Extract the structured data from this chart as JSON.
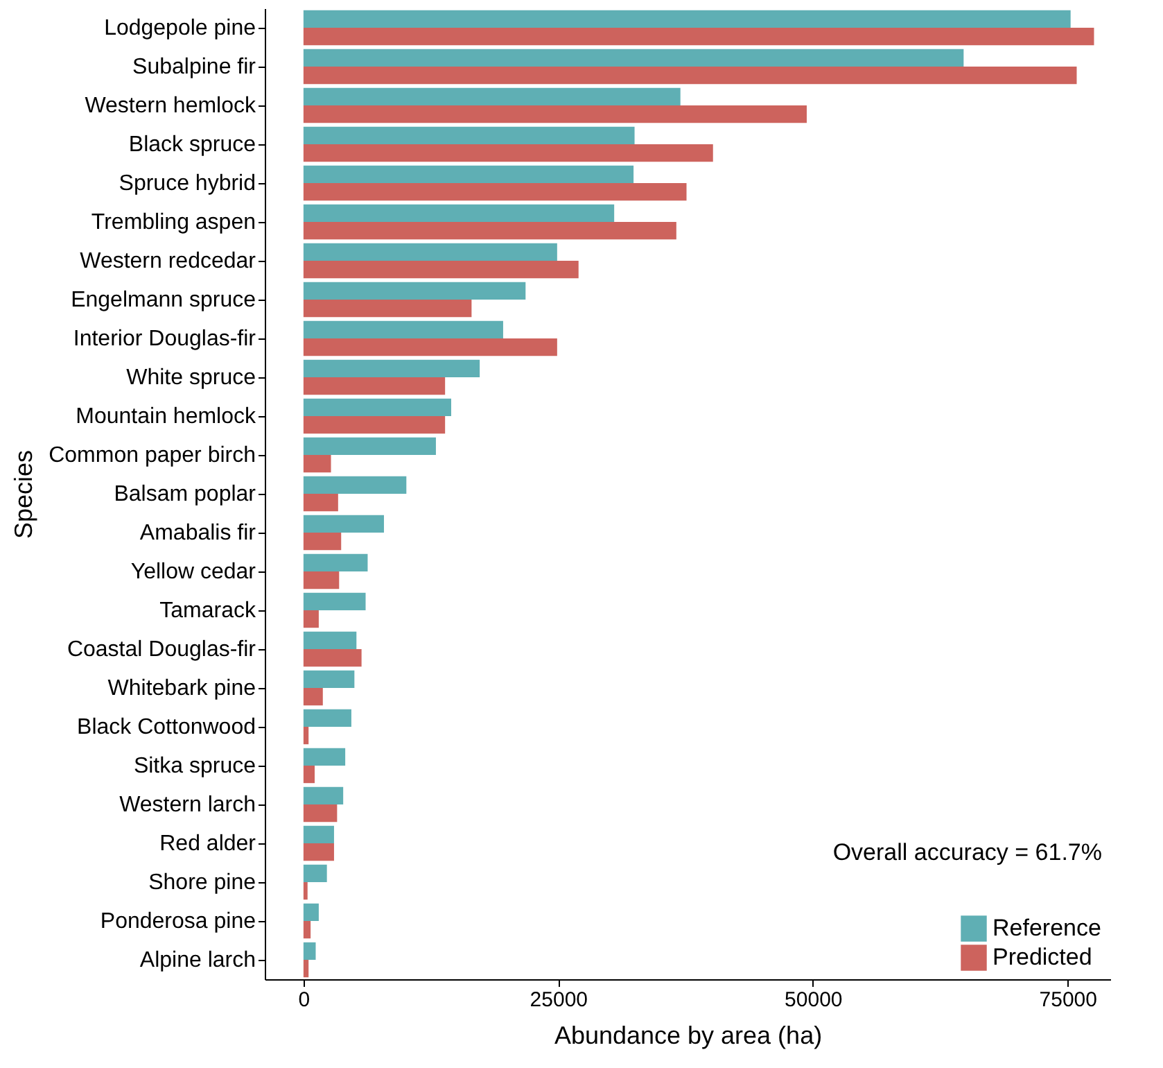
{
  "chart_data": {
    "type": "bar",
    "orientation": "horizontal",
    "xlabel": "Abundance by area (ha)",
    "ylabel": "Species",
    "categories": [
      "Lodgepole pine",
      "Subalpine fir",
      "Western hemlock",
      "Black spruce",
      "Spruce hybrid",
      "Trembling aspen",
      "Western redcedar",
      "Engelmann spruce",
      "Interior Douglas-fir",
      "White spruce",
      "Mountain hemlock",
      "Common paper birch",
      "Balsam poplar",
      "Amabalis fir",
      "Yellow cedar",
      "Tamarack",
      "Coastal Douglas-fir",
      "Whitebark pine",
      "Black Cottonwood",
      "Sitka spruce",
      "Western larch",
      "Red alder",
      "Shore pine",
      "Ponderosa pine",
      "Alpine larch"
    ],
    "series": [
      {
        "name": "Reference",
        "color": "#5fafb4",
        "values": [
          75300,
          64800,
          37000,
          32500,
          32400,
          30500,
          24900,
          21800,
          19600,
          17300,
          14500,
          13000,
          10100,
          7900,
          6300,
          6100,
          5200,
          5000,
          4700,
          4100,
          3900,
          3000,
          2300,
          1500,
          1200
        ]
      },
      {
        "name": "Predicted",
        "color": "#cd635d",
        "values": [
          77600,
          75900,
          49400,
          40200,
          37600,
          36600,
          27000,
          16500,
          24900,
          13900,
          13900,
          2700,
          3400,
          3700,
          3500,
          1500,
          5700,
          1900,
          500,
          1100,
          3300,
          3000,
          400,
          700,
          500
        ]
      }
    ],
    "xlim": [
      -3800,
      79200
    ],
    "xticks": [
      0,
      25000,
      50000,
      75000
    ],
    "grid": false,
    "legend": "bottom right",
    "annotations": [
      "Overall accuracy = 61.7%"
    ]
  }
}
